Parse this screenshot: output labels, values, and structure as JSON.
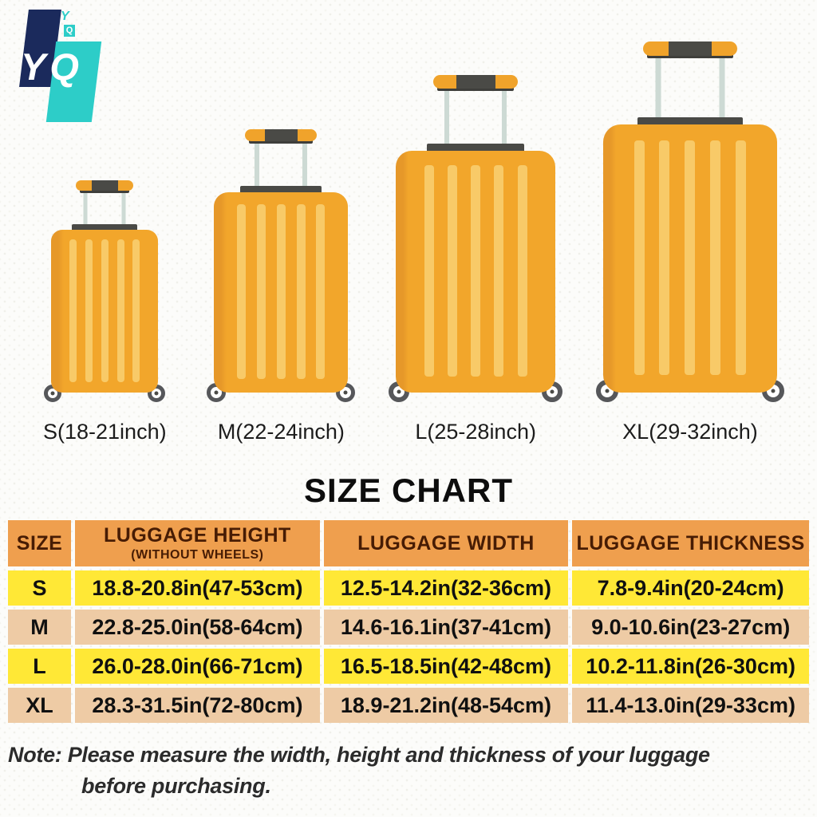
{
  "logo": {
    "main_text": "YQ",
    "small_y": "Y",
    "small_q": "Q",
    "navy_color": "#1B2A5C",
    "teal_color": "#2DCDC8"
  },
  "luggage_sizes": [
    {
      "name": "S",
      "label": "S(18-21inch)"
    },
    {
      "name": "M",
      "label": "M(22-24inch)"
    },
    {
      "name": "L",
      "label": "L(25-28inch)"
    },
    {
      "name": "XL",
      "label": "XL(29-32inch)"
    }
  ],
  "luggage_colors": {
    "body": "#F2A62B",
    "body_edge": "#E69829",
    "stripe": "#F8CA68",
    "dark_trim": "#4A4A46",
    "pole": "#CDDAD4",
    "wheel_ring": "#56575A"
  },
  "chart_data": {
    "type": "table",
    "title": "SIZE CHART",
    "headers": {
      "size": "SIZE",
      "height": "LUGGAGE HEIGHT",
      "height_sub": "(WITHOUT WHEELS)",
      "width": "LUGGAGE WIDTH",
      "thickness": "LUGGAGE THICKNESS"
    },
    "rows": [
      {
        "size": "S",
        "height": "18.8-20.8in(47-53cm)",
        "width": "12.5-14.2in(32-36cm)",
        "thickness": "7.8-9.4in(20-24cm)"
      },
      {
        "size": "M",
        "height": "22.8-25.0in(58-64cm)",
        "width": "14.6-16.1in(37-41cm)",
        "thickness": "9.0-10.6in(23-27cm)"
      },
      {
        "size": "L",
        "height": "26.0-28.0in(66-71cm)",
        "width": "16.5-18.5in(42-48cm)",
        "thickness": "10.2-11.8in(26-30cm)"
      },
      {
        "size": "XL",
        "height": "28.3-31.5in(72-80cm)",
        "width": "18.9-21.2in(48-54cm)",
        "thickness": "11.4-13.0in(29-33cm)"
      }
    ],
    "row_colors": {
      "odd": "#FFE836",
      "even": "#EECBA5",
      "header": "#EF9F4E"
    }
  },
  "note": {
    "line1": "Note: Please measure the width, height and thickness of your luggage",
    "line2": "before purchasing."
  }
}
